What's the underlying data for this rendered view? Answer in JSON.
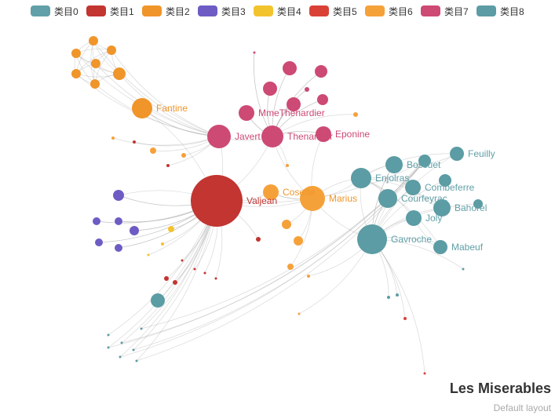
{
  "chart_data": {
    "type": "graph",
    "title": "Les Miserables",
    "subtitle": "Default layout",
    "legend_position": "top",
    "categories": [
      {
        "name": "类目0",
        "color": "#61a0a8"
      },
      {
        "name": "类目1",
        "color": "#c23531"
      },
      {
        "name": "类目2",
        "color": "#f0952a"
      },
      {
        "name": "类目3",
        "color": "#6e5cc4"
      },
      {
        "name": "类目4",
        "color": "#f3c32e"
      },
      {
        "name": "类目5",
        "color": "#d94137"
      },
      {
        "name": "类目6",
        "color": "#f5a13a"
      },
      {
        "name": "类目7",
        "color": "#cc4a74"
      },
      {
        "name": "类目8",
        "color": "#5c9ca4"
      }
    ],
    "labeled_nodes": [
      {
        "name": "Valjean",
        "category": 1
      },
      {
        "name": "Javert",
        "category": 7
      },
      {
        "name": "Thenardier",
        "category": 7
      },
      {
        "name": "MmeThenardier",
        "category": 7
      },
      {
        "name": "Eponine",
        "category": 7
      },
      {
        "name": "Fantine",
        "category": 2
      },
      {
        "name": "Cosette",
        "category": 6
      },
      {
        "name": "Marius",
        "category": 6
      },
      {
        "name": "Enjolras",
        "category": 8
      },
      {
        "name": "Bossuet",
        "category": 8
      },
      {
        "name": "Feuilly",
        "category": 8
      },
      {
        "name": "Combeferre",
        "category": 8
      },
      {
        "name": "Courfeyrac",
        "category": 8
      },
      {
        "name": "Bahorel",
        "category": 8
      },
      {
        "name": "Joly",
        "category": 8
      },
      {
        "name": "Gavroche",
        "category": 8
      },
      {
        "name": "Mabeuf",
        "category": 8
      }
    ]
  }
}
